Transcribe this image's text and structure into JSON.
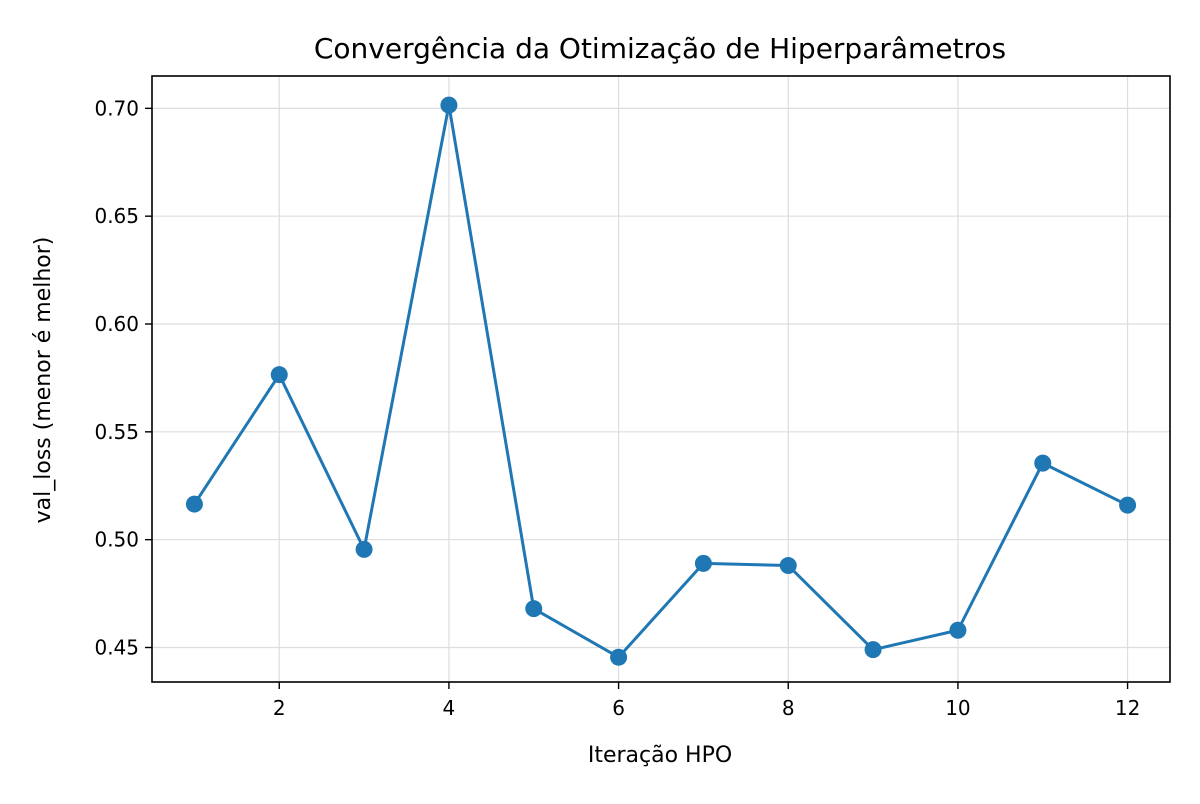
{
  "chart_data": {
    "type": "line",
    "title": "Convergência da Otimização de Hiperparâmetros",
    "xlabel": "Iteração HPO",
    "ylabel": "val_loss (menor é melhor)",
    "xlim": [
      0.5,
      12.5
    ],
    "ylim": [
      0.434,
      0.715
    ],
    "xticks": [
      2,
      4,
      6,
      8,
      10,
      12
    ],
    "xtick_labels": [
      "2",
      "4",
      "6",
      "8",
      "10",
      "12"
    ],
    "yticks": [
      0.45,
      0.5,
      0.55,
      0.6,
      0.65,
      0.7
    ],
    "ytick_labels": [
      "0.45",
      "0.50",
      "0.55",
      "0.60",
      "0.65",
      "0.70"
    ],
    "grid": true,
    "legend": "none",
    "series": [
      {
        "x": [
          1,
          2,
          3,
          4,
          5,
          6,
          7,
          8,
          9,
          10,
          11,
          12
        ],
        "y": [
          0.5165,
          0.5765,
          0.4955,
          0.7015,
          0.468,
          0.4455,
          0.489,
          0.488,
          0.449,
          0.458,
          0.5355,
          0.516
        ],
        "color": "#1f77b4",
        "marker": "circle"
      }
    ]
  }
}
